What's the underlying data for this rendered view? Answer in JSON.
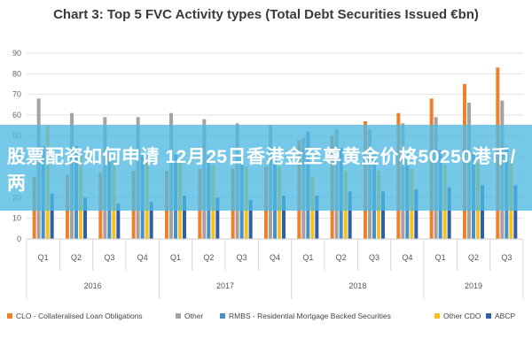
{
  "title": "Chart 3: Top 5 FVC Activity types (Total Debt Securities Issued €bn)",
  "overlay_text": "股票配资如何申请 12月25日香港金至尊黄金价格50250港币/两",
  "colors": {
    "clo": "#f0802e",
    "other": "#a3a3a3",
    "rmbs": "#4a8fc5",
    "other_cdo": "#f4c21f",
    "abcp": "#2f5fa8"
  },
  "chart_data": {
    "type": "bar",
    "title": "Chart 3: Top 5 FVC Activity types (Total Debt Securities Issued €bn)",
    "ylim": [
      0,
      90
    ],
    "yticks": [
      "0",
      "10",
      "20",
      "30",
      "40",
      "50",
      "60",
      "70",
      "80",
      "90"
    ],
    "grid": true,
    "legend_position": "bottom",
    "categories": [
      "Q1",
      "Q2",
      "Q3",
      "Q4",
      "Q1",
      "Q2",
      "Q3",
      "Q4",
      "Q1",
      "Q2",
      "Q3",
      "Q4",
      "Q1",
      "Q2",
      "Q3"
    ],
    "year_groups": [
      {
        "label": "2016",
        "count": 4
      },
      {
        "label": "2017",
        "count": 4
      },
      {
        "label": "2018",
        "count": 4
      },
      {
        "label": "2019",
        "count": 3
      }
    ],
    "series": [
      {
        "name": "CLO - Collateralised Loan Obligations",
        "color_key": "clo",
        "values": [
          30,
          31,
          32,
          33,
          33,
          34,
          34,
          35,
          48,
          50,
          57,
          61,
          68,
          75,
          83
        ]
      },
      {
        "name": "Other",
        "color_key": "other",
        "values": [
          68,
          61,
          59,
          59,
          61,
          58,
          56,
          55,
          49,
          53,
          53,
          56,
          59,
          66,
          67
        ]
      },
      {
        "name": "RMBS - Residential Mortgage Backed Securities",
        "color_key": "rmbs",
        "values": [
          45,
          45,
          42,
          42,
          41,
          40,
          40,
          39,
          52,
          44,
          41,
          41,
          43,
          42,
          45
        ]
      },
      {
        "name": "Other CDO",
        "color_key": "other_cdo",
        "values": [
          55,
          41,
          38,
          38,
          37,
          36,
          35,
          35,
          30,
          33,
          33,
          34,
          36,
          37,
          38
        ]
      },
      {
        "name": "ABCP",
        "color_key": "abcp",
        "values": [
          22,
          20,
          17,
          18,
          21,
          20,
          19,
          21,
          21,
          23,
          23,
          24,
          25,
          26,
          26
        ]
      }
    ]
  }
}
